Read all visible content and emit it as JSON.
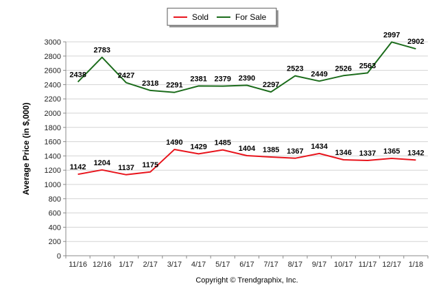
{
  "chart_data": {
    "type": "line",
    "categories": [
      "11/16",
      "12/16",
      "1/17",
      "2/17",
      "3/17",
      "4/17",
      "5/17",
      "6/17",
      "7/17",
      "8/17",
      "9/17",
      "10/17",
      "11/17",
      "12/17",
      "1/18"
    ],
    "series": [
      {
        "name": "Sold",
        "color": "#e8131b",
        "values": [
          1142,
          1204,
          1137,
          1175,
          1490,
          1429,
          1485,
          1404,
          1385,
          1367,
          1434,
          1346,
          1337,
          1365,
          1342
        ]
      },
      {
        "name": "For Sale",
        "color": "#1a6b1a",
        "values": [
          2438,
          2783,
          2427,
          2318,
          2291,
          2381,
          2379,
          2390,
          2297,
          2523,
          2449,
          2526,
          2563,
          2997,
          2902
        ]
      }
    ],
    "ylabel": "Average Price (in $,000)",
    "ylim": [
      0,
      3000
    ],
    "yticks": [
      0,
      200,
      400,
      600,
      800,
      1000,
      1200,
      1400,
      1600,
      1800,
      2000,
      2200,
      2400,
      2600,
      2800,
      3000
    ],
    "grid": true,
    "legend": "top-center",
    "data_labels": true
  },
  "footer": {
    "copyright": "Copyright © Trendgraphix, Inc."
  },
  "colors": {
    "grid": "#d3d3d3",
    "axis": "#888888"
  }
}
